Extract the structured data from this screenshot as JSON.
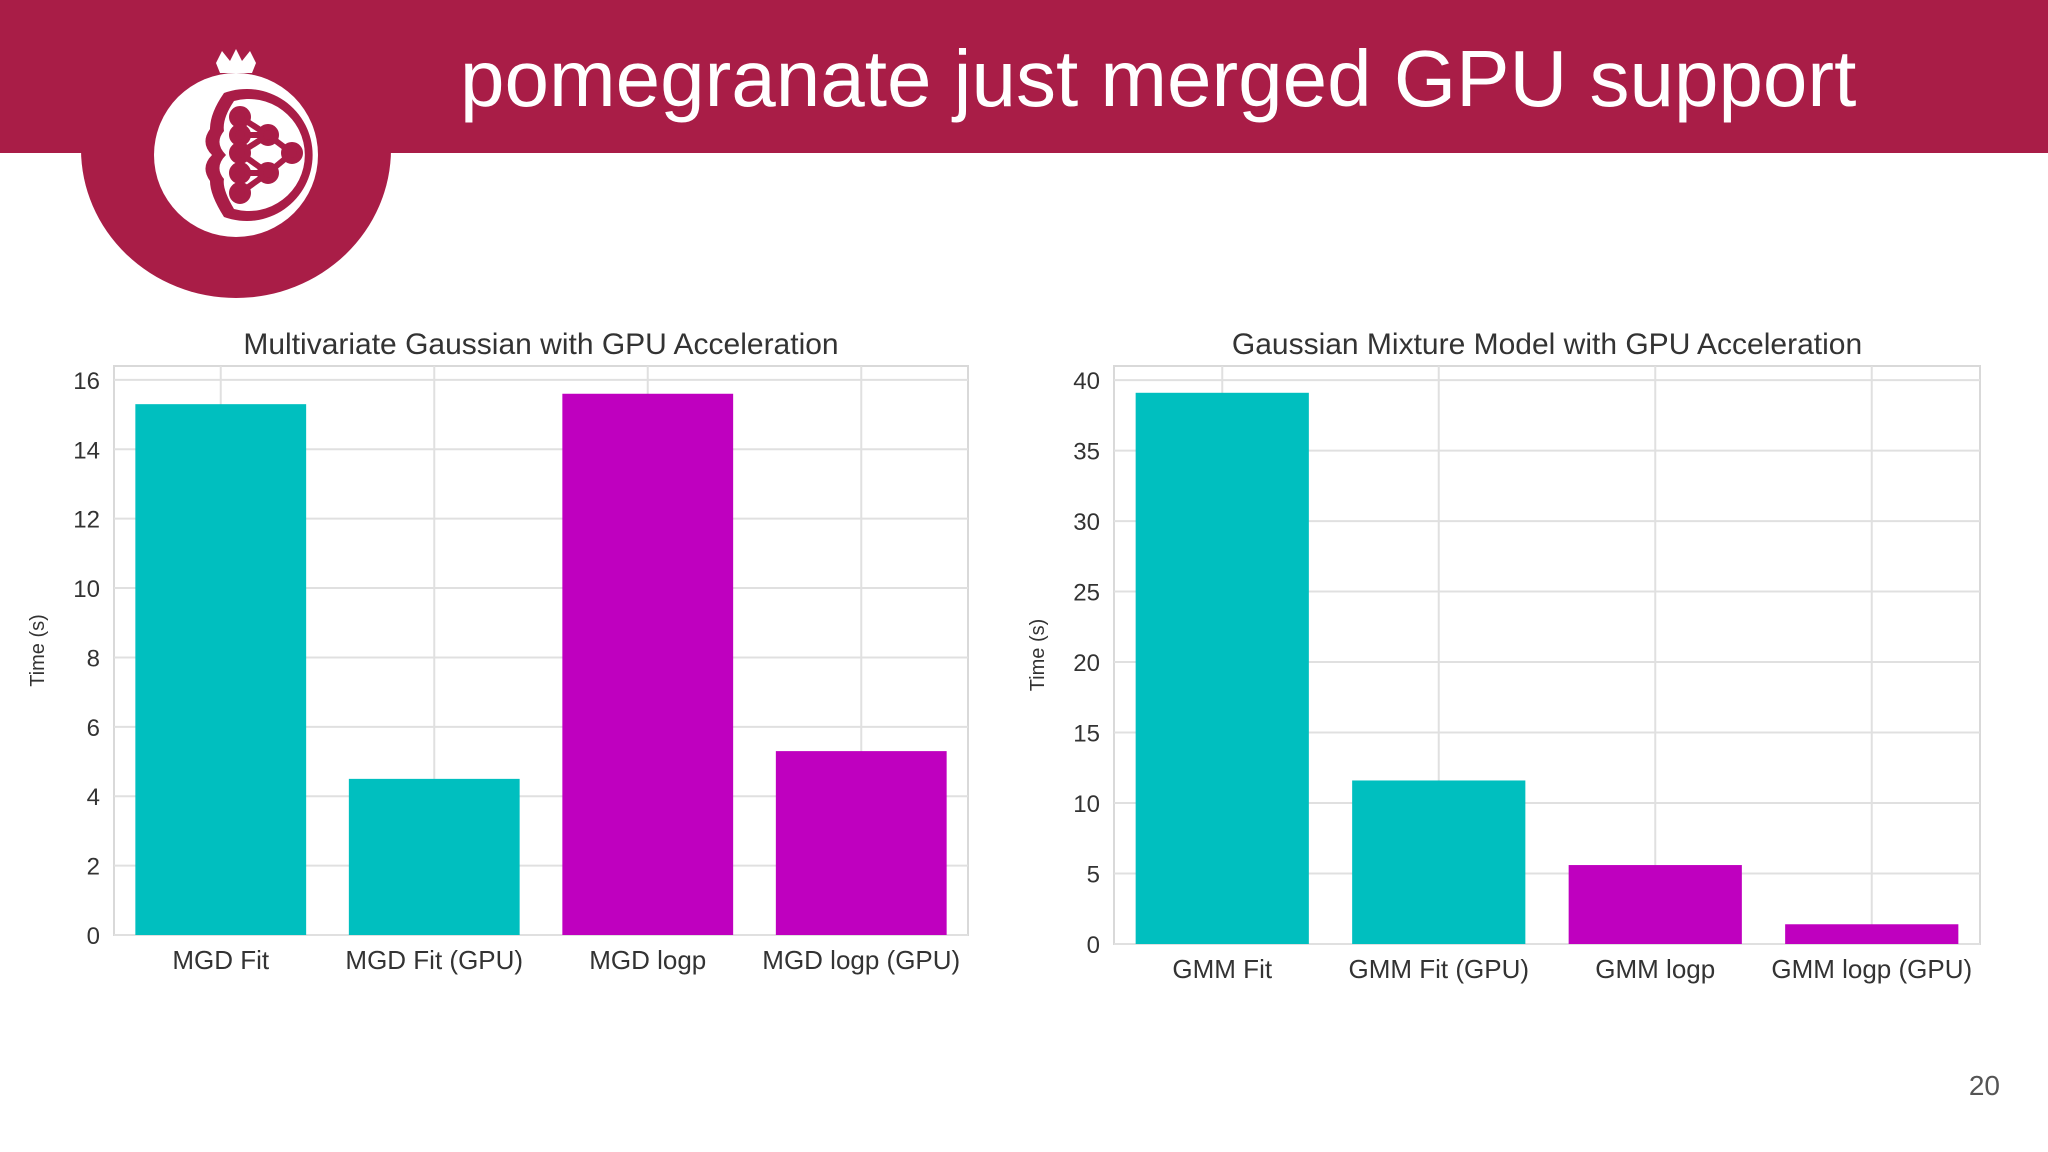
{
  "slide": {
    "title": "pomegranate just merged GPU support",
    "page_number": "20",
    "brand_color": "#a91d47"
  },
  "logo": {
    "icon": "pomegranate-network-logo-icon"
  },
  "chart_data": [
    {
      "type": "bar",
      "title": "Multivariate Gaussian with GPU Acceleration",
      "xlabel": "",
      "ylabel": "Time (s)",
      "categories": [
        "MGD Fit",
        "MGD Fit (GPU)",
        "MGD logp",
        "MGD logp (GPU)"
      ],
      "values": [
        15.3,
        4.5,
        15.6,
        5.3
      ],
      "colors": [
        "#00bfbf",
        "#00bfbf",
        "#bf00bf",
        "#bf00bf"
      ],
      "ylim": [
        0,
        16.4
      ],
      "yticks": [
        0,
        2,
        4,
        6,
        8,
        10,
        12,
        14,
        16
      ],
      "grid": true
    },
    {
      "type": "bar",
      "title": "Gaussian Mixture Model with GPU Acceleration",
      "xlabel": "",
      "ylabel": "Time (s)",
      "categories": [
        "GMM Fit",
        "GMM Fit (GPU)",
        "GMM logp",
        "GMM logp (GPU)"
      ],
      "values": [
        39.1,
        11.6,
        5.6,
        1.4
      ],
      "colors": [
        "#00bfbf",
        "#00bfbf",
        "#bf00bf",
        "#bf00bf"
      ],
      "ylim": [
        0,
        41
      ],
      "yticks": [
        0,
        5,
        10,
        15,
        20,
        25,
        30,
        35,
        40
      ],
      "grid": true
    }
  ]
}
